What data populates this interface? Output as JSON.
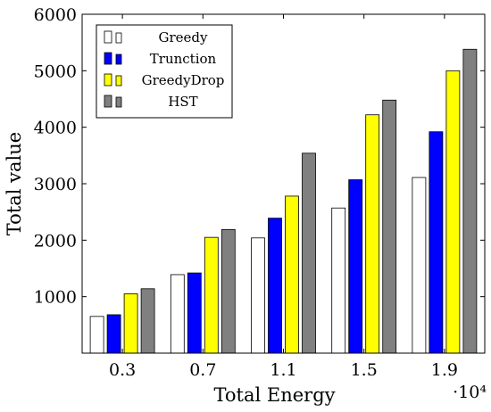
{
  "chart_data": {
    "type": "bar",
    "title": "",
    "xlabel": "Total Energy",
    "ylabel": "Total value",
    "x_multiplier_label": "·10⁴",
    "categories": [
      "0.3",
      "0.7",
      "1.1",
      "1.5",
      "1.9"
    ],
    "ylim": [
      0,
      6000
    ],
    "yticks": [
      "1000",
      "2000",
      "3000",
      "4000",
      "5000",
      "6000"
    ],
    "legend_position": "top-left",
    "series": [
      {
        "name": "Greedy",
        "color": "#ffffff",
        "values": [
          650,
          1390,
          2040,
          2570,
          3110
        ]
      },
      {
        "name": "Trunction",
        "color": "#0000ff",
        "values": [
          680,
          1420,
          2390,
          3070,
          3920
        ]
      },
      {
        "name": "GreedyDrop",
        "color": "#ffff00",
        "values": [
          1050,
          2050,
          2780,
          4220,
          5000
        ]
      },
      {
        "name": "HST",
        "color": "#808080",
        "values": [
          1140,
          2190,
          3540,
          4480,
          5380
        ]
      }
    ]
  }
}
